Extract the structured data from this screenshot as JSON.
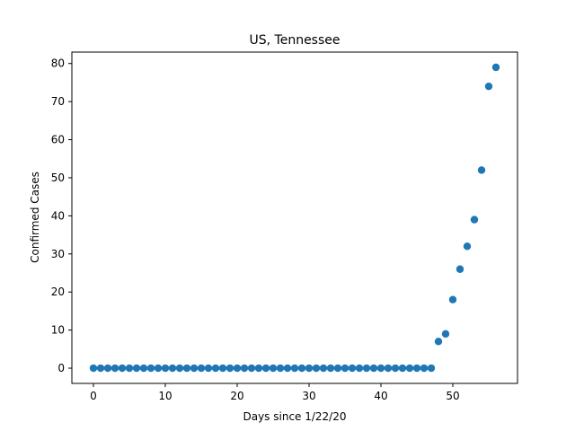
{
  "chart_data": {
    "type": "scatter",
    "title": "US, Tennessee",
    "xlabel": "Days since 1/22/20",
    "ylabel": "Confirmed Cases",
    "xlim": [
      -3,
      59
    ],
    "ylim": [
      -4,
      83
    ],
    "xticks": [
      0,
      10,
      20,
      30,
      40,
      50
    ],
    "yticks": [
      0,
      10,
      20,
      30,
      40,
      50,
      60,
      70,
      80
    ],
    "grid": false,
    "series": [
      {
        "color": "#1f77b4",
        "x": [
          0,
          1,
          2,
          3,
          4,
          5,
          6,
          7,
          8,
          9,
          10,
          11,
          12,
          13,
          14,
          15,
          16,
          17,
          18,
          19,
          20,
          21,
          22,
          23,
          24,
          25,
          26,
          27,
          28,
          29,
          30,
          31,
          32,
          33,
          34,
          35,
          36,
          37,
          38,
          39,
          40,
          41,
          42,
          43,
          44,
          45,
          46,
          47,
          48,
          49,
          50,
          51,
          52,
          53,
          54,
          55,
          56
        ],
        "y": [
          0,
          0,
          0,
          0,
          0,
          0,
          0,
          0,
          0,
          0,
          0,
          0,
          0,
          0,
          0,
          0,
          0,
          0,
          0,
          0,
          0,
          0,
          0,
          0,
          0,
          0,
          0,
          0,
          0,
          0,
          0,
          0,
          0,
          0,
          0,
          0,
          0,
          0,
          0,
          0,
          0,
          0,
          0,
          0,
          0,
          0,
          0,
          0,
          7,
          9,
          18,
          26,
          32,
          39,
          52,
          74,
          79
        ]
      }
    ]
  }
}
